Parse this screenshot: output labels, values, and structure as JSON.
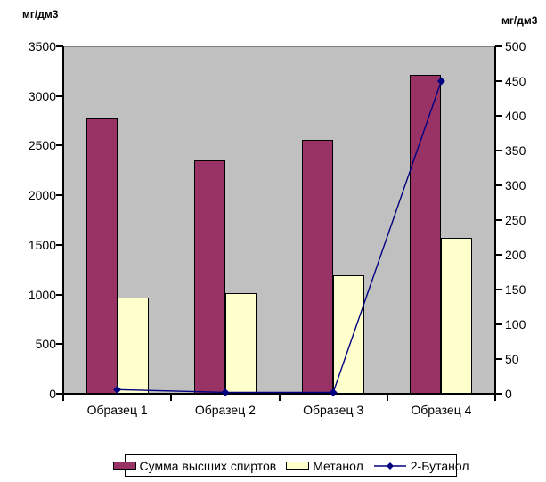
{
  "chart_data": {
    "type": "bar",
    "subtype": "bar-line-combo",
    "title": "",
    "categories": [
      "Образец 1",
      "Образец 2",
      "Образец 3",
      "Образец 4"
    ],
    "series": [
      {
        "name": "Сумма высших спиртов",
        "kind": "bar",
        "axis": "left",
        "color": "#993366",
        "values": [
          2770,
          2355,
          2560,
          3215
        ]
      },
      {
        "name": "Метанол",
        "kind": "bar",
        "axis": "left",
        "color": "#FFFFCC",
        "values": [
          970,
          1010,
          1190,
          1575
        ]
      },
      {
        "name": "2-Бутанол",
        "kind": "line",
        "axis": "right",
        "color": "#000080",
        "values": [
          6,
          2,
          2,
          450
        ]
      }
    ],
    "left_axis": {
      "title": "мг/дм3",
      "min": 0,
      "max": 3500,
      "step": 500,
      "ticks": [
        0,
        500,
        1000,
        1500,
        2000,
        2500,
        3000,
        3500
      ]
    },
    "right_axis": {
      "title": "мг/дм3",
      "min": 0,
      "max": 500,
      "step": 50,
      "ticks": [
        0,
        50,
        100,
        150,
        200,
        250,
        300,
        350,
        400,
        450,
        500
      ]
    },
    "legend": {
      "position": "bottom"
    },
    "plot_background": "#C0C0C0",
    "grid": false
  }
}
